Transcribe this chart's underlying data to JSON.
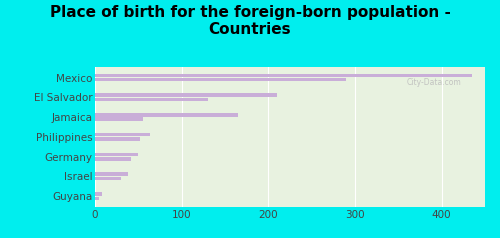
{
  "title": "Place of birth for the foreign-born population -\nCountries",
  "categories": [
    "Mexico",
    "El Salvador",
    "Jamaica",
    "Philippines",
    "Germany",
    "Israel",
    "Guyana"
  ],
  "values_top": [
    435,
    210,
    165,
    63,
    50,
    38,
    8
  ],
  "values_bot": [
    290,
    130,
    55,
    52,
    42,
    30,
    5
  ],
  "bar_color_top": "#c9aed8",
  "bar_color_bot": "#c9aed8",
  "bg_outer": "#00EEEE",
  "bg_chart_top": "#e8f2e0",
  "bg_chart_bot": "#f0f8e8",
  "xlim": [
    0,
    450
  ],
  "xticks": [
    0,
    100,
    200,
    300,
    400
  ],
  "title_fontsize": 11,
  "label_fontsize": 7.5,
  "tick_fontsize": 7.5,
  "watermark": "City-Data.com"
}
